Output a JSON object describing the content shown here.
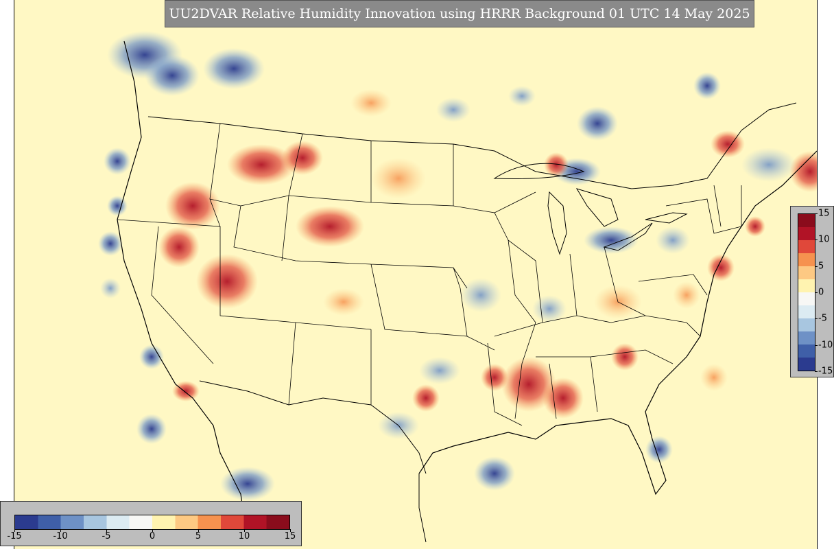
{
  "title": "UU2DVAR Relative Humidity Innovation using HRRR Background 01 UTC 14 May 2025",
  "colorbar": {
    "min": -15,
    "max": 15,
    "bottom_ticks": [
      "-15",
      "-10",
      "-5",
      "0",
      "5",
      "10",
      "15"
    ],
    "right_ticks": [
      "15",
      "10",
      "5",
      "0",
      "-5",
      "-10",
      "-15"
    ],
    "colors": [
      "#2b3b8f",
      "#3f5fa8",
      "#6e91c6",
      "#a8c6e0",
      "#dcebf2",
      "#f7f7f5",
      "#fff3b0",
      "#fdc983",
      "#f6924f",
      "#e0483a",
      "#b11326",
      "#8a0c1c"
    ]
  },
  "map": {
    "projection": "lambert-conformal",
    "region": "CONUS",
    "background_color": "#fff8c4",
    "field": "relative humidity innovation"
  }
}
